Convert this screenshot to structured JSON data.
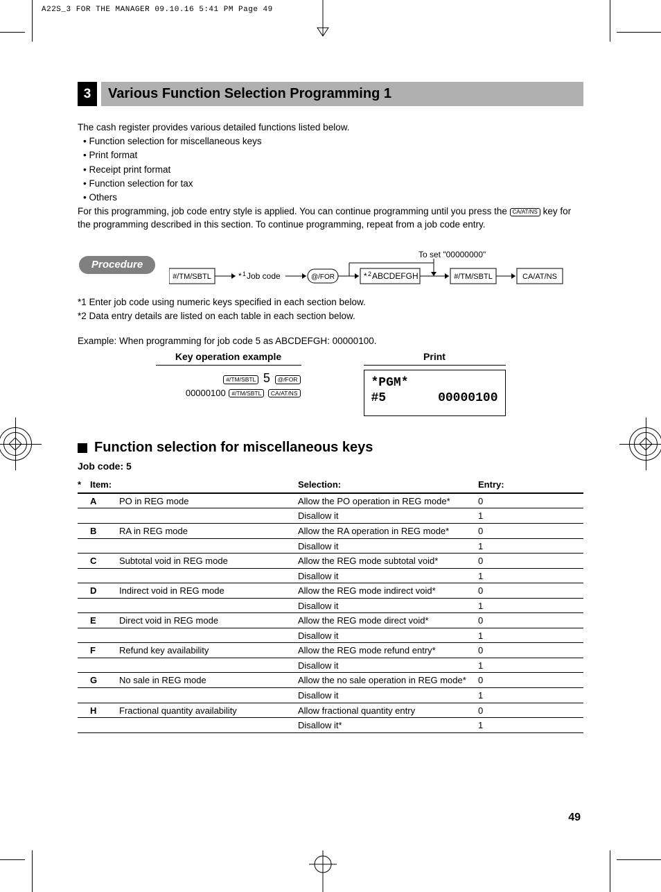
{
  "page_meta_header": "A22S_3 FOR THE MANAGER  09.10.16 5:41 PM  Page 49",
  "page_number": "49",
  "title": {
    "number": "3",
    "text": "Various Function Selection Programming 1"
  },
  "intro": {
    "lead": "The cash register provides various detailed functions listed below.",
    "bullets": [
      "• Function selection for miscellaneous keys",
      "• Print format",
      "• Receipt print format",
      "• Function selection for tax",
      "• Others"
    ],
    "para2_a": "For this programming, job code entry style is applied.  You can continue programming until you press the ",
    "para2_key": "CA/AT/NS",
    "para2_b": " key for the programming described in this section.  To continue programming, repeat from a job code entry."
  },
  "procedure": {
    "label": "Procedure",
    "toset": "To set \"00000000\"",
    "boxes": {
      "b1": "#/TM/SBTL",
      "b2_pre": "*",
      "b2_sup": "1",
      "b2_post": "Job code",
      "b3": "@/FOR",
      "b4_pre": "*",
      "b4_sup": "2",
      "b4_post": "ABCDEFGH",
      "b5": "#/TM/SBTL",
      "b6": "CA/AT/NS"
    }
  },
  "notes": {
    "n1": "*1  Enter job code using numeric keys specified in each section below.",
    "n2": "*2  Data entry details are listed on each table in each section below."
  },
  "example_line": "Example:  When programming for job code 5 as ABCDEFGH: 00000100.",
  "kop": {
    "header": "Key operation example",
    "line1_k1": "#/TM/SBTL",
    "line1_mid": "5",
    "line1_k2": "@/FOR",
    "line2_num": "00000100",
    "line2_k1": "#/TM/SBTL",
    "line2_k2": "CA/AT/NS"
  },
  "print": {
    "header": "Print",
    "l1": "*PGM*",
    "l2a": "#5",
    "l2b": "00000100"
  },
  "section": {
    "heading": "Function selection for miscellaneous keys",
    "jobcode": "Job code:  5"
  },
  "table": {
    "headers": {
      "star": "*",
      "item": "Item:",
      "selection": "Selection:",
      "entry": "Entry:"
    },
    "rows": [
      {
        "letter": "A",
        "item": "PO in REG mode",
        "sel1": "Allow the PO operation in REG mode*",
        "e1": "0",
        "sel2": "Disallow it",
        "e2": "1"
      },
      {
        "letter": "B",
        "item": "RA in REG mode",
        "sel1": "Allow the RA operation in REG mode*",
        "e1": "0",
        "sel2": "Disallow it",
        "e2": "1"
      },
      {
        "letter": "C",
        "item": "Subtotal void in REG mode",
        "sel1": "Allow the REG mode subtotal void*",
        "e1": "0",
        "sel2": "Disallow it",
        "e2": "1"
      },
      {
        "letter": "D",
        "item": "Indirect void in REG mode",
        "sel1": "Allow the REG mode indirect void*",
        "e1": "0",
        "sel2": "Disallow it",
        "e2": "1"
      },
      {
        "letter": "E",
        "item": "Direct void in REG mode",
        "sel1": "Allow the REG mode direct void*",
        "e1": "0",
        "sel2": "Disallow it",
        "e2": "1"
      },
      {
        "letter": "F",
        "item": "Refund key availability",
        "sel1": "Allow the REG mode refund entry*",
        "e1": "0",
        "sel2": "Disallow it",
        "e2": "1"
      },
      {
        "letter": "G",
        "item": "No sale in REG mode",
        "sel1": "Allow the no sale operation in REG mode*",
        "e1": "0",
        "sel2": "Disallow it",
        "e2": "1"
      },
      {
        "letter": "H",
        "item": "Fractional quantity availability",
        "sel1": "Allow fractional quantity entry",
        "e1": "0",
        "sel2": "Disallow it*",
        "e2": "1"
      }
    ]
  },
  "colors": {
    "title_bar_bg": "#b0b0b0",
    "proc_badge_bg": "#808080"
  }
}
